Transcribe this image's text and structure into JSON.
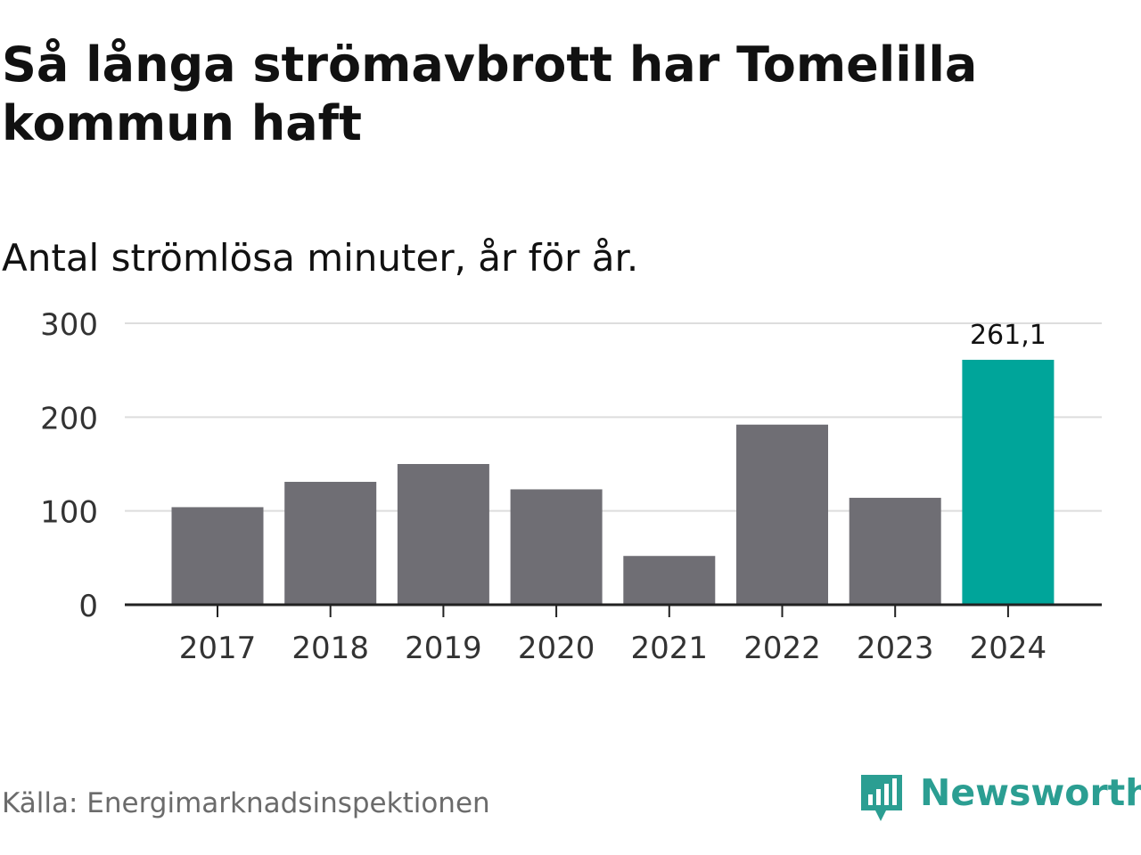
{
  "header": {
    "title": "Så långa strömavbrott har Tomelilla kommun haft",
    "subtitle": "Antal strömlösa minuter, år för år."
  },
  "footer": {
    "source": "Källa: Energimarknadsinspektionen",
    "brand": "Newsworthy"
  },
  "colors": {
    "bar": "#6f6e74",
    "highlight": "#00a59a",
    "grid": "#dddddd",
    "axis": "#222222",
    "brand": "#2b9e92"
  },
  "chart_data": {
    "type": "bar",
    "title": "Så långa strömavbrott har Tomelilla kommun haft",
    "subtitle": "Antal strömlösa minuter, år för år.",
    "xlabel": "",
    "ylabel": "",
    "categories": [
      "2017",
      "2018",
      "2019",
      "2020",
      "2021",
      "2022",
      "2023",
      "2024"
    ],
    "values": [
      104,
      131,
      150,
      123,
      52,
      192,
      114,
      261.1
    ],
    "highlight_index": 7,
    "data_labels": {
      "7": "261,1"
    },
    "ylim": [
      0,
      300
    ],
    "yticks": [
      0,
      100,
      200,
      300
    ],
    "grid": true,
    "legend": "none"
  }
}
